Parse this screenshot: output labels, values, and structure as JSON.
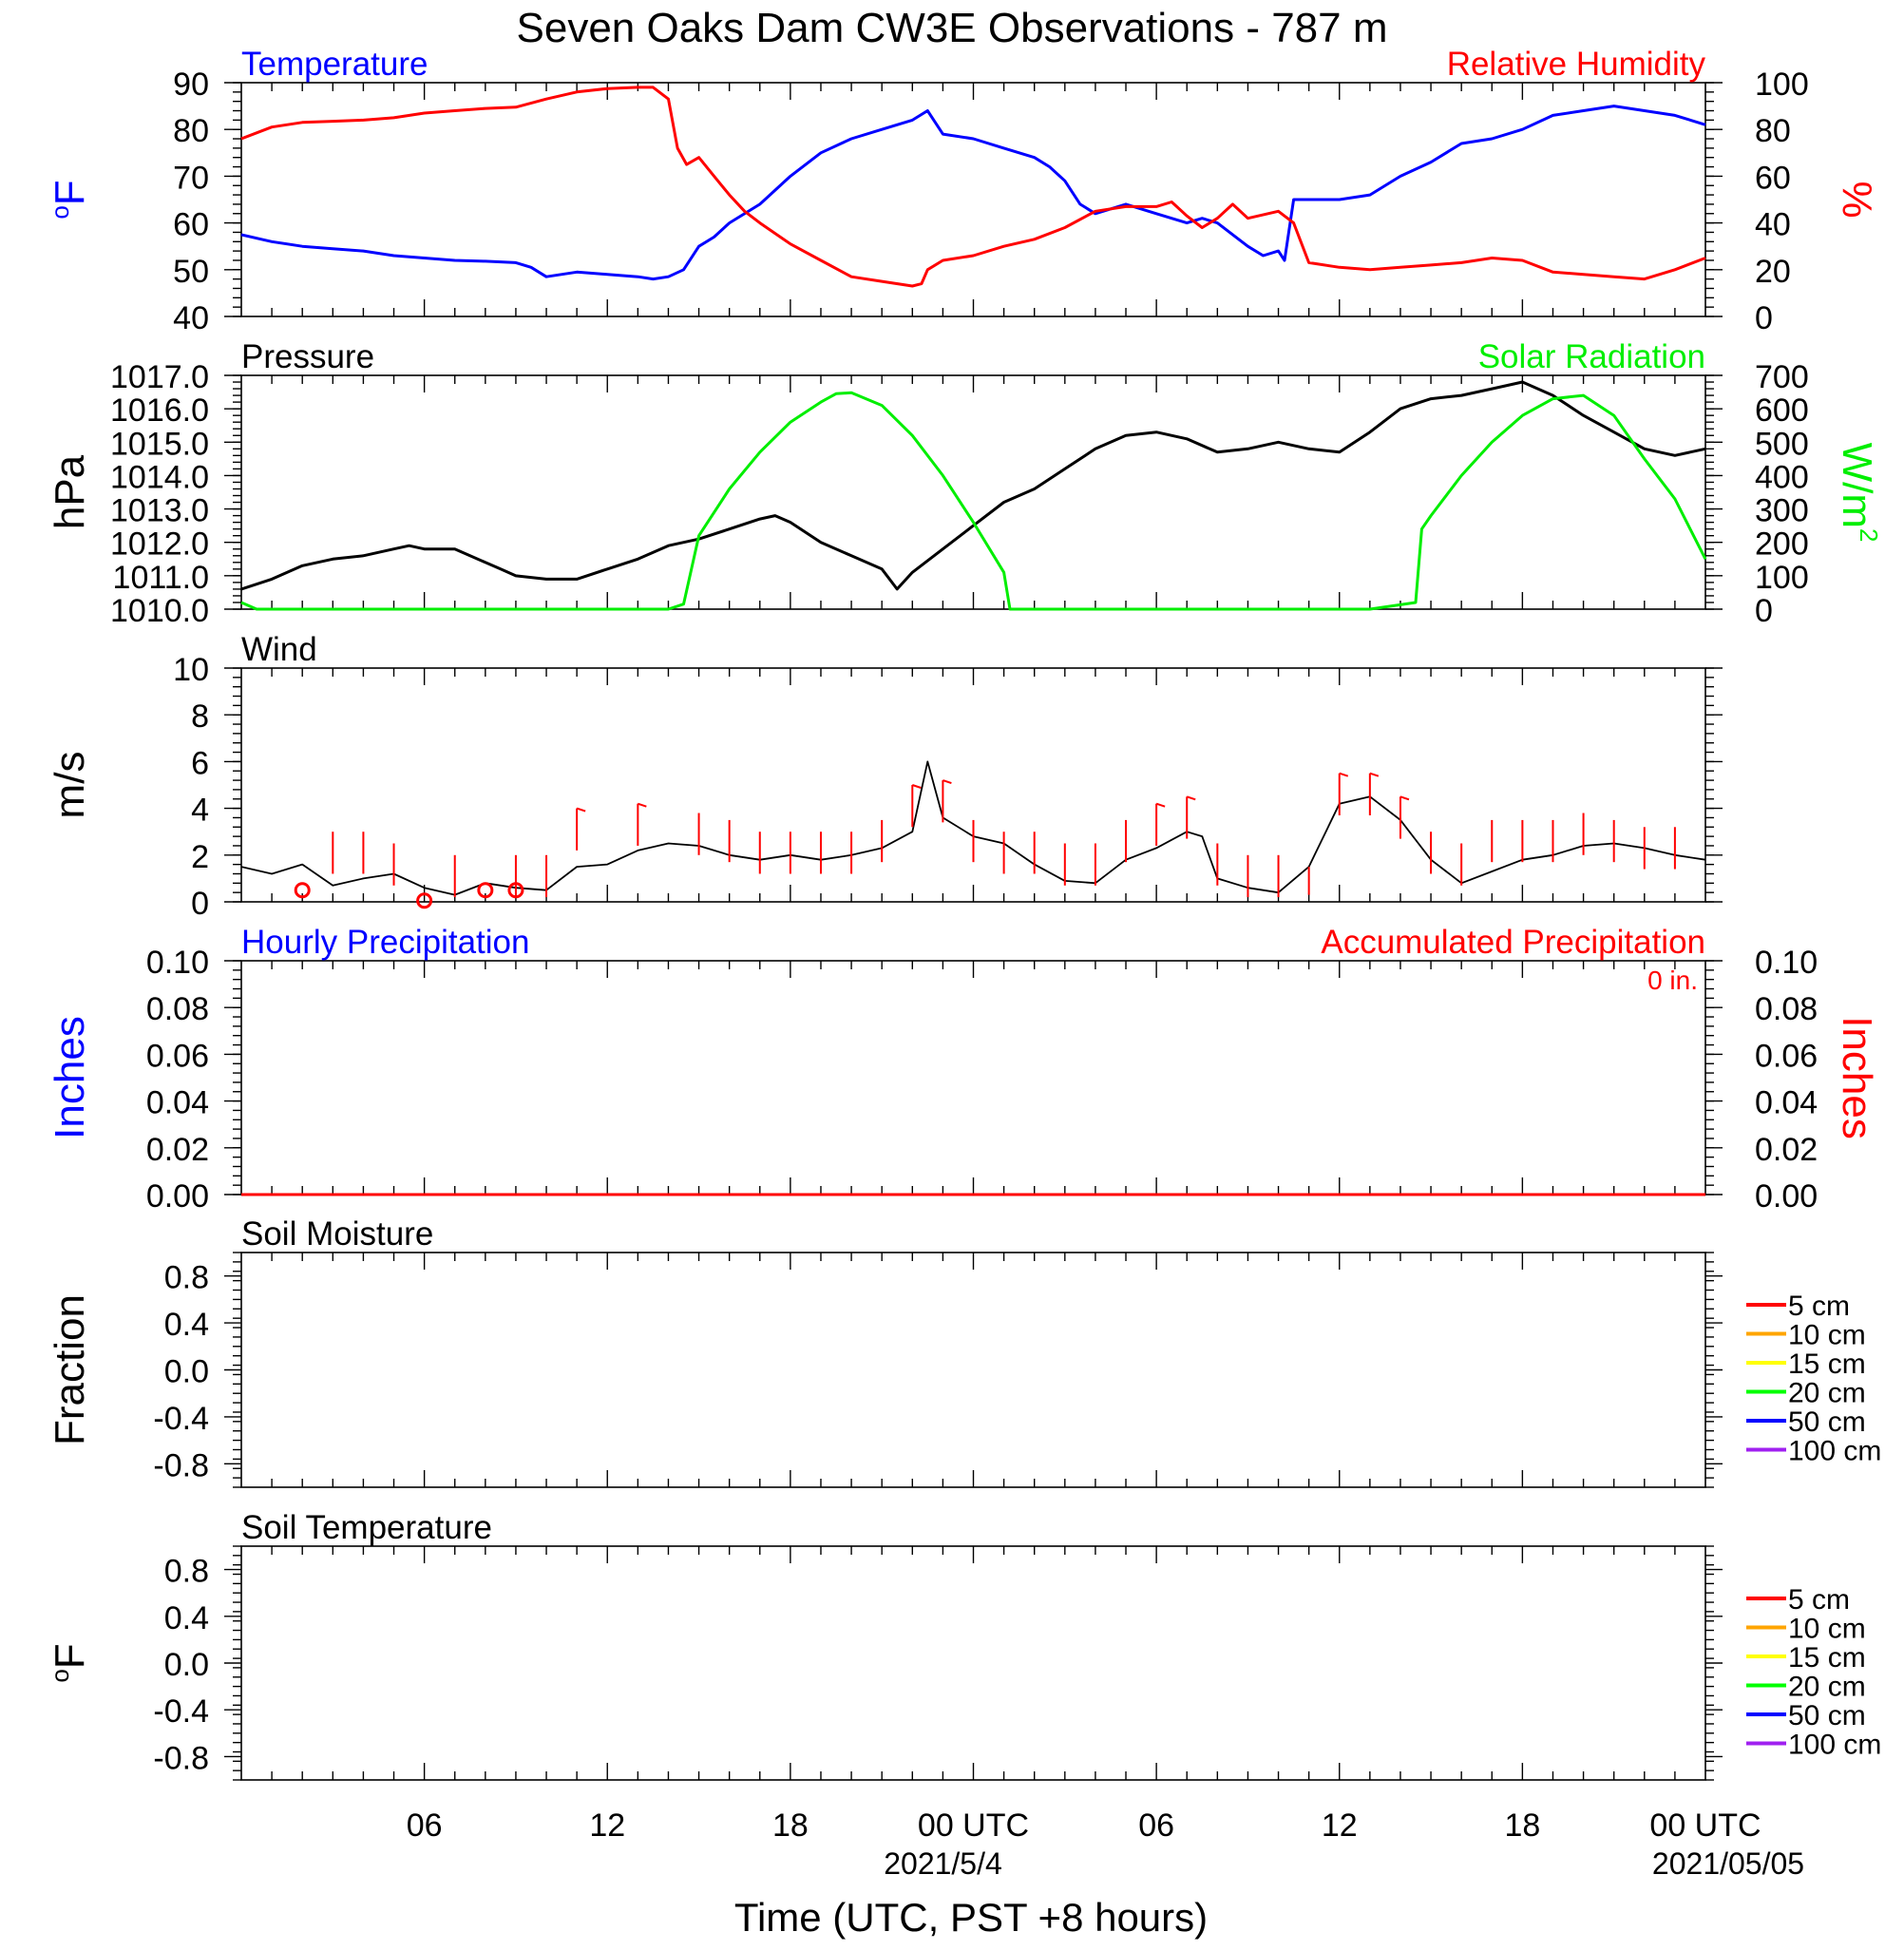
{
  "title": "Seven Oaks Dam CW3E Observations - 787 m",
  "colors": {
    "temperature": "#0000ff",
    "humidity": "#ff0000",
    "pressure": "#000000",
    "solar": "#00ee00",
    "wind": "#000000",
    "barb": "#ff0000",
    "hourly_precip": "#0000ff",
    "accum_precip": "#ff0000"
  },
  "time_axis": {
    "xlabel": "Time (UTC, PST +8 hours)",
    "tick_labels": [
      "06",
      "12",
      "18",
      "00 UTC",
      "06",
      "12",
      "18",
      "00 UTC"
    ],
    "tick_hours": [
      6,
      12,
      18,
      24,
      30,
      36,
      42,
      48
    ],
    "date_labels": [
      "2021/5/4",
      "2021/05/05"
    ],
    "date_hours": [
      24,
      48
    ],
    "xlim_hours": [
      0,
      48
    ]
  },
  "chart_data": [
    {
      "type": "line",
      "panel": "temp_rh",
      "left_title": "Temperature",
      "right_title": "Relative Humidity",
      "ylabel_left": "oF",
      "ylabel_right": "%",
      "ylim_left": [
        40,
        90
      ],
      "ylim_right": [
        0,
        100
      ],
      "yticks_left": [
        "40",
        "50",
        "60",
        "70",
        "80",
        "90"
      ],
      "yticks_right": [
        "0",
        "20",
        "40",
        "60",
        "80",
        "100"
      ],
      "series": [
        {
          "name": "Temperature",
          "axis": "left",
          "x": [
            0,
            1,
            2,
            3,
            4,
            5,
            6,
            7,
            8,
            9,
            9.5,
            10,
            11,
            12,
            13,
            13.5,
            14,
            14.5,
            15,
            15.5,
            16,
            17,
            18,
            19,
            20,
            21,
            22,
            22.5,
            23,
            24,
            25,
            26,
            26.5,
            27,
            27.5,
            28,
            29,
            30,
            31,
            31.5,
            32,
            33,
            33.5,
            34,
            34.2,
            34.5,
            36,
            37,
            38,
            39,
            40,
            41,
            42,
            43,
            44,
            45,
            46,
            47,
            48
          ],
          "values": [
            57.5,
            56,
            55,
            54.5,
            54,
            53,
            52.5,
            52,
            51.8,
            51.5,
            50.5,
            48.5,
            49.5,
            49,
            48.5,
            48,
            48.5,
            50,
            55,
            57,
            60,
            64,
            70,
            75,
            78,
            80,
            82,
            84,
            79,
            78,
            76,
            74,
            72,
            69,
            64,
            62,
            64,
            62,
            60,
            61,
            60,
            55,
            53,
            54,
            52,
            65,
            65,
            66,
            70,
            73,
            77,
            78,
            80,
            83,
            84,
            85,
            84,
            83,
            81
          ]
        },
        {
          "name": "Relative Humidity",
          "axis": "right",
          "x": [
            0,
            1,
            2,
            3,
            4,
            5,
            6,
            7,
            8,
            9,
            10,
            11,
            12,
            13,
            13.5,
            14,
            14.3,
            14.6,
            15,
            15.5,
            16,
            16.5,
            17,
            18,
            19,
            20,
            21,
            22,
            22.3,
            22.5,
            23,
            24,
            25,
            26,
            27,
            28,
            29,
            30,
            30.5,
            31,
            31.5,
            32,
            32.5,
            33,
            34,
            34.5,
            35,
            36,
            37,
            38,
            39,
            40,
            41,
            42,
            43,
            44,
            45,
            46,
            47,
            48
          ],
          "values": [
            76,
            81,
            83,
            83.5,
            84,
            85,
            87,
            88,
            89,
            89.5,
            93,
            96,
            97.5,
            98,
            98,
            93,
            72,
            65,
            68,
            60,
            52,
            45,
            40,
            31,
            24,
            17,
            15,
            13,
            14,
            20,
            24,
            26,
            30,
            33,
            38,
            45,
            47,
            47,
            49,
            43,
            38,
            42,
            48,
            42,
            45,
            40,
            23,
            21,
            20,
            21,
            22,
            23,
            25,
            24,
            19,
            18,
            17,
            16,
            20,
            25
          ]
        }
      ]
    },
    {
      "type": "line",
      "panel": "pressure_solar",
      "left_title": "Pressure",
      "right_title": "Solar Radiation",
      "ylabel_left": "hPa",
      "ylabel_right": "W/m2",
      "ylim_left": [
        1010,
        1017
      ],
      "ylim_right": [
        0,
        700
      ],
      "yticks_left": [
        "1010.0",
        "1011.0",
        "1012.0",
        "1013.0",
        "1014.0",
        "1015.0",
        "1016.0",
        "1017.0"
      ],
      "yticks_right": [
        "0",
        "100",
        "200",
        "300",
        "400",
        "500",
        "600",
        "700"
      ],
      "series": [
        {
          "name": "Pressure",
          "axis": "left",
          "x": [
            0,
            1,
            2,
            3,
            4,
            5,
            5.5,
            6,
            7,
            8,
            8.5,
            9,
            10,
            11,
            12,
            13,
            14,
            15,
            16,
            17,
            17.5,
            18,
            19,
            20,
            21,
            21.5,
            22,
            23,
            24,
            25,
            26,
            27,
            28,
            29,
            30,
            31,
            32,
            33,
            34,
            35,
            36,
            37,
            38,
            39,
            40,
            41,
            42,
            43,
            44,
            45,
            46,
            47,
            48
          ],
          "values": [
            1010.6,
            1010.9,
            1011.3,
            1011.5,
            1011.6,
            1011.8,
            1011.9,
            1011.8,
            1011.8,
            1011.4,
            1011.2,
            1011.0,
            1010.9,
            1010.9,
            1011.2,
            1011.5,
            1011.9,
            1012.1,
            1012.4,
            1012.7,
            1012.8,
            1012.6,
            1012.0,
            1011.6,
            1011.2,
            1010.6,
            1011.1,
            1011.8,
            1012.5,
            1013.2,
            1013.6,
            1014.2,
            1014.8,
            1015.2,
            1015.3,
            1015.1,
            1014.7,
            1014.8,
            1015.0,
            1014.8,
            1014.7,
            1015.3,
            1016.0,
            1016.3,
            1016.4,
            1016.6,
            1016.8,
            1016.4,
            1015.8,
            1015.3,
            1014.8,
            1014.6,
            1014.8
          ]
        },
        {
          "name": "Solar Radiation",
          "axis": "right",
          "x": [
            0,
            0.5,
            1,
            14,
            14.5,
            15,
            16,
            17,
            18,
            19,
            19.5,
            20,
            21,
            22,
            23,
            24,
            25,
            25.2,
            26,
            37,
            38.5,
            38.7,
            39,
            40,
            41,
            42,
            43,
            44,
            45,
            46,
            47,
            48
          ],
          "values": [
            20,
            0,
            0,
            0,
            15,
            220,
            360,
            470,
            560,
            620,
            645,
            648,
            610,
            520,
            400,
            260,
            110,
            0,
            0,
            0,
            20,
            240,
            280,
            400,
            500,
            580,
            630,
            640,
            580,
            450,
            330,
            150
          ]
        }
      ]
    },
    {
      "type": "line",
      "panel": "wind",
      "left_title": "Wind",
      "ylabel_left": "m/s",
      "ylim_left": [
        0,
        10
      ],
      "yticks_left": [
        "0",
        "2",
        "4",
        "6",
        "8",
        "10"
      ],
      "series": [
        {
          "name": "Wind",
          "axis": "left",
          "x": [
            0,
            1,
            2,
            3,
            4,
            5,
            6,
            7,
            8,
            9,
            10,
            11,
            12,
            13,
            14,
            15,
            16,
            17,
            18,
            19,
            20,
            21,
            22,
            22.5,
            23,
            24,
            25,
            26,
            27,
            28,
            29,
            30,
            31,
            31.5,
            32,
            33,
            34,
            35,
            36,
            37,
            38,
            39,
            40,
            41,
            42,
            43,
            44,
            45,
            46,
            47,
            48
          ],
          "values": [
            1.5,
            1.2,
            1.6,
            0.7,
            1.0,
            1.2,
            0.6,
            0.3,
            0.8,
            0.6,
            0.5,
            1.5,
            1.6,
            2.2,
            2.5,
            2.4,
            2.0,
            1.8,
            2.0,
            1.8,
            2.0,
            2.3,
            3.0,
            6.0,
            3.6,
            2.8,
            2.5,
            1.6,
            0.9,
            0.8,
            1.8,
            2.3,
            3.0,
            2.8,
            1.0,
            0.6,
            0.4,
            1.5,
            4.2,
            4.5,
            3.5,
            1.8,
            0.8,
            1.3,
            1.8,
            2.0,
            2.4,
            2.5,
            2.3,
            2.0,
            1.8
          ]
        }
      ],
      "barbs_hours": [
        3,
        4,
        5,
        7,
        9,
        10,
        11,
        13,
        15,
        16,
        17,
        18,
        19,
        20,
        21,
        22,
        23,
        24,
        25,
        26,
        27,
        28,
        29,
        30,
        31,
        32,
        33,
        34,
        35,
        36,
        37,
        38,
        39,
        40,
        41,
        42,
        43,
        44,
        45,
        46,
        47
      ],
      "barb_speeds": [
        3,
        3,
        2.5,
        2,
        2,
        2,
        4,
        4.2,
        3.8,
        3.5,
        3,
        3,
        3,
        3,
        3.5,
        5,
        5.2,
        3.5,
        3,
        3,
        2.5,
        2.5,
        3.5,
        4.2,
        4.5,
        2.5,
        2,
        2,
        1.5,
        5.5,
        5.5,
        4.5,
        3,
        2.5,
        3.5,
        3.5,
        3.5,
        3.8,
        3.5,
        3.2,
        3.2
      ],
      "calm_hours": [
        2,
        6,
        8,
        9
      ]
    },
    {
      "type": "line",
      "panel": "precip",
      "left_title": "Hourly Precipitation",
      "right_title": "Accumulated Precipitation",
      "annotation": "0 in.",
      "ylabel_left": "Inches",
      "ylabel_right": "Inches",
      "ylim_left": [
        0,
        0.1
      ],
      "ylim_right": [
        0,
        0.1
      ],
      "yticks_left": [
        "0.00",
        "0.02",
        "0.04",
        "0.06",
        "0.08",
        "0.10"
      ],
      "yticks_right": [
        "0.00",
        "0.02",
        "0.04",
        "0.06",
        "0.08",
        "0.10"
      ],
      "series": [
        {
          "name": "Hourly Precipitation",
          "axis": "left",
          "x": [
            0,
            48
          ],
          "values": [
            0,
            0
          ]
        },
        {
          "name": "Accumulated Precipitation",
          "axis": "right",
          "x": [
            0,
            48
          ],
          "values": [
            0,
            0
          ]
        }
      ]
    },
    {
      "type": "line",
      "panel": "soil_moisture",
      "left_title": "Soil Moisture",
      "ylabel_left": "Fraction",
      "ylim_left": [
        -1,
        1
      ],
      "yticks_left": [
        "-0.8",
        "-0.4",
        "0.0",
        "0.4",
        "0.8"
      ],
      "legend": [
        {
          "label": "5 cm",
          "color": "#ff0000"
        },
        {
          "label": "10 cm",
          "color": "#ffa500"
        },
        {
          "label": "15 cm",
          "color": "#ffff00"
        },
        {
          "label": "20 cm",
          "color": "#00ff00"
        },
        {
          "label": "50 cm",
          "color": "#0000ff"
        },
        {
          "label": "100 cm",
          "color": "#a020f0"
        }
      ],
      "series": []
    },
    {
      "type": "line",
      "panel": "soil_temperature",
      "left_title": "Soil Temperature",
      "ylabel_left": "oF",
      "ylim_left": [
        -1,
        1
      ],
      "yticks_left": [
        "-0.8",
        "-0.4",
        "0.0",
        "0.4",
        "0.8"
      ],
      "legend": [
        {
          "label": "5 cm",
          "color": "#ff0000"
        },
        {
          "label": "10 cm",
          "color": "#ffa500"
        },
        {
          "label": "15 cm",
          "color": "#ffff00"
        },
        {
          "label": "20 cm",
          "color": "#00ff00"
        },
        {
          "label": "50 cm",
          "color": "#0000ff"
        },
        {
          "label": "100 cm",
          "color": "#a020f0"
        }
      ],
      "series": []
    }
  ]
}
